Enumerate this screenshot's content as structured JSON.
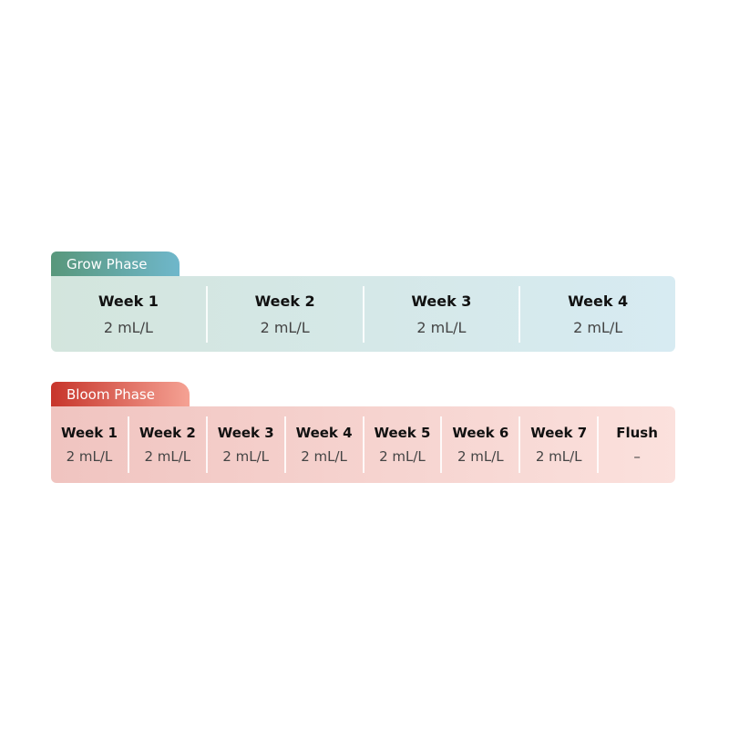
{
  "grow": {
    "title": "Grow Phase",
    "colors": [
      "#58977b",
      "#6fb7cb"
    ],
    "weeks": [
      {
        "label": "Week 1",
        "dose": "2 mL/L"
      },
      {
        "label": "Week 2",
        "dose": "2 mL/L"
      },
      {
        "label": "Week 3",
        "dose": "2 mL/L"
      },
      {
        "label": "Week 4",
        "dose": "2 mL/L"
      }
    ]
  },
  "bloom": {
    "title": "Bloom Phase",
    "colors": [
      "#c7352b",
      "#f5a294"
    ],
    "weeks": [
      {
        "label": "Week 1",
        "dose": "2 mL/L"
      },
      {
        "label": "Week 2",
        "dose": "2 mL/L"
      },
      {
        "label": "Week 3",
        "dose": "2 mL/L"
      },
      {
        "label": "Week 4",
        "dose": "2 mL/L"
      },
      {
        "label": "Week 5",
        "dose": "2 mL/L"
      },
      {
        "label": "Week 6",
        "dose": "2 mL/L"
      },
      {
        "label": "Week 7",
        "dose": "2 mL/L"
      },
      {
        "label": "Flush",
        "dose": "–"
      }
    ]
  }
}
